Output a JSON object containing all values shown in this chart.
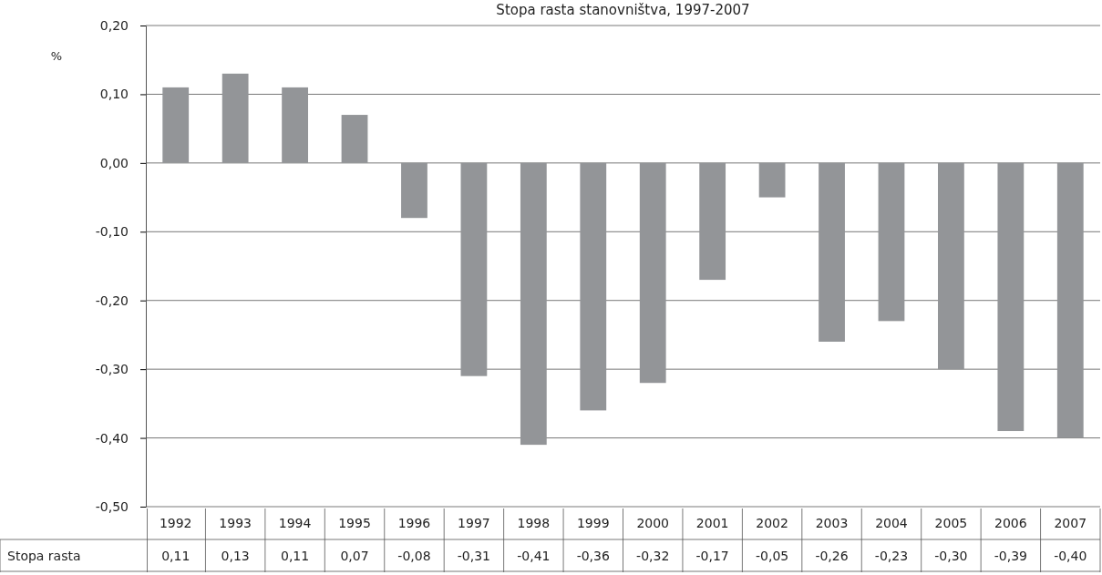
{
  "chart_data": {
    "type": "bar",
    "title": "Stopa rasta stanovništva, 1997-2007",
    "ylabel": "%",
    "categories": [
      "1992",
      "1993",
      "1994",
      "1995",
      "1996",
      "1997",
      "1998",
      "1999",
      "2000",
      "2001",
      "2002",
      "2003",
      "2004",
      "2005",
      "2006",
      "2007"
    ],
    "series": [
      {
        "name": "Stopa rasta",
        "color": "#939598",
        "values": [
          0.11,
          0.13,
          0.11,
          0.07,
          -0.08,
          -0.31,
          -0.41,
          -0.36,
          -0.32,
          -0.17,
          -0.05,
          -0.26,
          -0.23,
          -0.3,
          -0.39,
          -0.4
        ],
        "value_labels": [
          "0,11",
          "0,13",
          "0,11",
          "0,07",
          "-0,08",
          "-0,31",
          "-0,41",
          "-0,36",
          "-0,32",
          "-0,17",
          "-0,05",
          "-0,26",
          "-0,23",
          "-0,30",
          "-0,39",
          "-0,40"
        ]
      }
    ],
    "ylim": [
      -0.5,
      0.2
    ],
    "yticks": [
      {
        "value": 0.2,
        "label": "0,20"
      },
      {
        "value": 0.1,
        "label": "0,10"
      },
      {
        "value": 0,
        "label": "0,00"
      },
      {
        "value": -0.1,
        "label": "-0,10"
      },
      {
        "value": -0.2,
        "label": "-0,20"
      },
      {
        "value": -0.3,
        "label": "-0,30"
      },
      {
        "value": -0.4,
        "label": "-0,40"
      },
      {
        "value": -0.5,
        "label": "-0,50"
      }
    ],
    "grid": "y"
  }
}
